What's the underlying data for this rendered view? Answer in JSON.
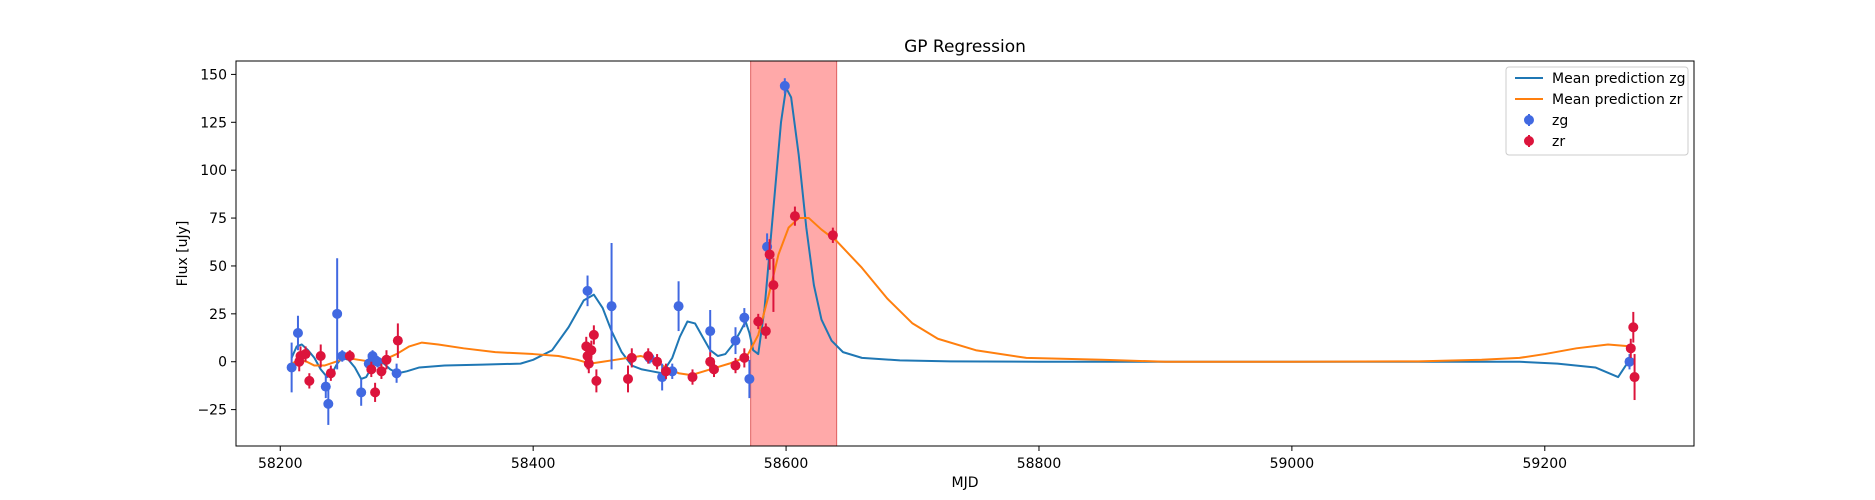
{
  "chart_data": {
    "type": "scatter",
    "title": "GP Regression",
    "xlabel": "MJD",
    "ylabel": "Flux [uJy]",
    "xlim": [
      58165,
      59318
    ],
    "ylim": [
      -44,
      157
    ],
    "xticks": [
      58200,
      58400,
      58600,
      58800,
      59000,
      59200
    ],
    "yticks": [
      -25,
      0,
      25,
      50,
      75,
      100,
      125,
      150
    ],
    "grid": false,
    "legend_position": "top-right",
    "highlight_span": {
      "x0": 58572,
      "x1": 58640,
      "color": "#ff9a9a"
    },
    "series": [
      {
        "name": "Mean prediction zg",
        "kind": "line",
        "color": "#1f77b4",
        "points": [
          [
            58209,
            2
          ],
          [
            58213,
            8
          ],
          [
            58217,
            9
          ],
          [
            58222,
            6
          ],
          [
            58227,
            2
          ],
          [
            58232,
            -4
          ],
          [
            58237,
            -8
          ],
          [
            58241,
            -6
          ],
          [
            58245,
            -1
          ],
          [
            58249,
            2
          ],
          [
            58254,
            1
          ],
          [
            58259,
            -3
          ],
          [
            58264,
            -9
          ],
          [
            58268,
            -8
          ],
          [
            58273,
            -2
          ],
          [
            58277,
            1
          ],
          [
            58282,
            -1
          ],
          [
            58287,
            -4
          ],
          [
            58293,
            -6
          ],
          [
            58300,
            -5
          ],
          [
            58310,
            -3
          ],
          [
            58330,
            -2
          ],
          [
            58360,
            -1.5
          ],
          [
            58390,
            -1
          ],
          [
            58400,
            1
          ],
          [
            58415,
            6
          ],
          [
            58428,
            18
          ],
          [
            58440,
            32
          ],
          [
            58448,
            35
          ],
          [
            58455,
            28
          ],
          [
            58462,
            16
          ],
          [
            58470,
            5
          ],
          [
            58478,
            -2
          ],
          [
            58486,
            -4
          ],
          [
            58494,
            -5
          ],
          [
            58502,
            -6
          ],
          [
            58510,
            2
          ],
          [
            58516,
            13
          ],
          [
            58522,
            21
          ],
          [
            58528,
            20
          ],
          [
            58534,
            13
          ],
          [
            58540,
            6
          ],
          [
            58546,
            3
          ],
          [
            58552,
            4
          ],
          [
            58558,
            9
          ],
          [
            58564,
            16
          ],
          [
            58568,
            21
          ],
          [
            58571,
            15
          ],
          [
            58574,
            6
          ],
          [
            58578,
            4
          ],
          [
            58583,
            28
          ],
          [
            58590,
            80
          ],
          [
            58596,
            125
          ],
          [
            58600,
            143
          ],
          [
            58604,
            138
          ],
          [
            58610,
            108
          ],
          [
            58616,
            70
          ],
          [
            58622,
            40
          ],
          [
            58628,
            22
          ],
          [
            58636,
            11
          ],
          [
            58645,
            5
          ],
          [
            58660,
            2
          ],
          [
            58690,
            0.7
          ],
          [
            58730,
            0.2
          ],
          [
            58800,
            0
          ],
          [
            58900,
            0
          ],
          [
            59000,
            0
          ],
          [
            59100,
            0
          ],
          [
            59180,
            0
          ],
          [
            59210,
            -1
          ],
          [
            59240,
            -3
          ],
          [
            59258,
            -8
          ],
          [
            59264,
            -2
          ],
          [
            59268,
            1
          ]
        ]
      },
      {
        "name": "Mean prediction zr",
        "kind": "line",
        "color": "#ff7f0e",
        "points": [
          [
            58209,
            -1
          ],
          [
            58215,
            1
          ],
          [
            58221,
            0
          ],
          [
            58227,
            -2
          ],
          [
            58235,
            -2
          ],
          [
            58244,
            0
          ],
          [
            58252,
            2
          ],
          [
            58262,
            1
          ],
          [
            58272,
            0
          ],
          [
            58282,
            1
          ],
          [
            58292,
            4
          ],
          [
            58302,
            8
          ],
          [
            58312,
            10
          ],
          [
            58325,
            9
          ],
          [
            58345,
            7
          ],
          [
            58370,
            5
          ],
          [
            58400,
            4
          ],
          [
            58420,
            3
          ],
          [
            58435,
            1
          ],
          [
            58445,
            -1
          ],
          [
            58455,
            0
          ],
          [
            58465,
            1
          ],
          [
            58475,
            2
          ],
          [
            58485,
            3
          ],
          [
            58495,
            1
          ],
          [
            58505,
            -3
          ],
          [
            58515,
            -6
          ],
          [
            58525,
            -7
          ],
          [
            58535,
            -5
          ],
          [
            58545,
            -3
          ],
          [
            58555,
            -1
          ],
          [
            58563,
            1
          ],
          [
            58570,
            4
          ],
          [
            58578,
            14
          ],
          [
            58586,
            34
          ],
          [
            58594,
            56
          ],
          [
            58602,
            70
          ],
          [
            58610,
            75
          ],
          [
            58618,
            75
          ],
          [
            58628,
            69
          ],
          [
            58640,
            63
          ],
          [
            58660,
            49
          ],
          [
            58680,
            33
          ],
          [
            58700,
            20
          ],
          [
            58720,
            12
          ],
          [
            58750,
            6
          ],
          [
            58790,
            2
          ],
          [
            58850,
            1
          ],
          [
            58900,
            0
          ],
          [
            59000,
            0
          ],
          [
            59100,
            0.2
          ],
          [
            59150,
            1
          ],
          [
            59180,
            2
          ],
          [
            59200,
            4
          ],
          [
            59225,
            7
          ],
          [
            59250,
            9
          ],
          [
            59268,
            8
          ]
        ]
      },
      {
        "name": "zg",
        "kind": "errorbar",
        "color": "#4169e1",
        "points": [
          [
            58209,
            -3,
            13
          ],
          [
            58214,
            15,
            9
          ],
          [
            58236,
            -13,
            6
          ],
          [
            58238,
            -22,
            11
          ],
          [
            58245,
            25,
            29
          ],
          [
            58249,
            3,
            3
          ],
          [
            58264,
            -16,
            7
          ],
          [
            58270,
            -1,
            5
          ],
          [
            58273,
            3,
            3
          ],
          [
            58277,
            0,
            3
          ],
          [
            58292,
            -6,
            5
          ],
          [
            58443,
            37,
            8
          ],
          [
            58462,
            29,
            33
          ],
          [
            58492,
            2,
            3
          ],
          [
            58502,
            -8,
            7
          ],
          [
            58510,
            -5,
            4
          ],
          [
            58515,
            29,
            13
          ],
          [
            58540,
            16,
            11
          ],
          [
            58560,
            11,
            7
          ],
          [
            58567,
            23,
            5
          ],
          [
            58571,
            -9,
            10
          ],
          [
            58585,
            60,
            7
          ],
          [
            58599,
            144,
            4
          ],
          [
            59267,
            0,
            4
          ]
        ]
      },
      {
        "name": "zr",
        "kind": "errorbar",
        "color": "#dc143c",
        "points": [
          [
            58215,
            0,
            5
          ],
          [
            58216,
            3,
            5
          ],
          [
            58220,
            4,
            4
          ],
          [
            58223,
            -10,
            4
          ],
          [
            58232,
            3,
            6
          ],
          [
            58240,
            -6,
            4
          ],
          [
            58255,
            3,
            3
          ],
          [
            58272,
            -4,
            4
          ],
          [
            58275,
            -16,
            5
          ],
          [
            58280,
            -5,
            4
          ],
          [
            58284,
            1,
            5
          ],
          [
            58293,
            11,
            9
          ],
          [
            58442,
            8,
            5
          ],
          [
            58443,
            3,
            7
          ],
          [
            58444,
            -1,
            5
          ],
          [
            58446,
            6,
            5
          ],
          [
            58448,
            14,
            5
          ],
          [
            58450,
            -10,
            6
          ],
          [
            58475,
            -9,
            7
          ],
          [
            58478,
            2,
            5
          ],
          [
            58491,
            3,
            4
          ],
          [
            58498,
            0,
            4
          ],
          [
            58505,
            -5,
            4
          ],
          [
            58526,
            -8,
            4
          ],
          [
            58540,
            0,
            5
          ],
          [
            58543,
            -4,
            4
          ],
          [
            58560,
            -2,
            4
          ],
          [
            58567,
            2,
            5
          ],
          [
            58578,
            21,
            4
          ],
          [
            58584,
            16,
            4
          ],
          [
            58587,
            56,
            8
          ],
          [
            58590,
            40,
            14
          ],
          [
            58607,
            76,
            5
          ],
          [
            58637,
            66,
            4
          ],
          [
            59268,
            7,
            5
          ],
          [
            59270,
            18,
            8
          ],
          [
            59271,
            -8,
            12
          ]
        ]
      }
    ]
  }
}
